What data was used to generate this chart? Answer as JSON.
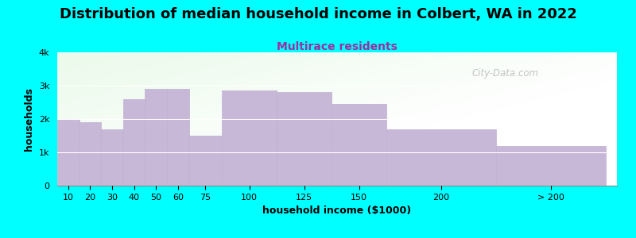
{
  "title": "Distribution of median household income in Colbert, WA in 2022",
  "subtitle": "Multirace residents",
  "xlabel": "household income ($1000)",
  "ylabel": "households",
  "background_color": "#00FFFF",
  "bar_color": "#C8B8D8",
  "bar_edge_color": "#C0B0D0",
  "categories": [
    "10",
    "20",
    "30",
    "40",
    "50",
    "60",
    "75",
    "100",
    "125",
    "150",
    "200",
    "> 200"
  ],
  "values": [
    2000,
    1900,
    1700,
    2600,
    2900,
    2900,
    1500,
    2850,
    2800,
    2450,
    1700,
    1200
  ],
  "ylim": [
    0,
    4000
  ],
  "yticks": [
    0,
    1000,
    2000,
    3000,
    4000
  ],
  "ytick_labels": [
    "0",
    "1k",
    "2k",
    "3k",
    "4k"
  ],
  "title_fontsize": 13,
  "subtitle_fontsize": 10,
  "subtitle_color": "#9B30A0",
  "axis_label_fontsize": 9,
  "tick_fontsize": 8,
  "watermark": "City-Data.com",
  "left_edges": [
    0,
    10,
    20,
    30,
    40,
    50,
    60,
    75,
    100,
    125,
    150,
    200
  ],
  "right_edges": [
    10,
    20,
    30,
    40,
    50,
    60,
    75,
    100,
    125,
    150,
    200,
    250
  ]
}
